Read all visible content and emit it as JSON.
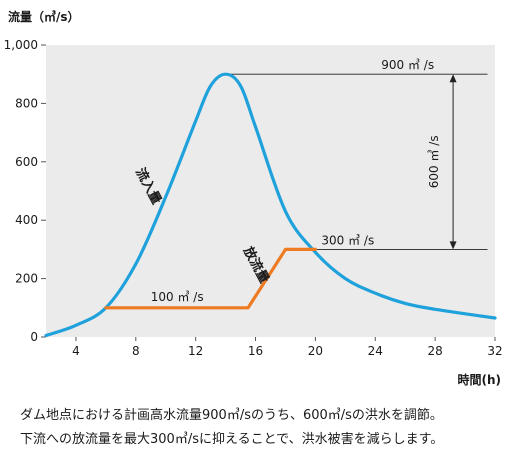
{
  "chart_data": {
    "type": "line",
    "ylabel": "流量（㎥/s）",
    "xlabel": "時間(h)",
    "xlim": [
      2,
      32
    ],
    "ylim": [
      0,
      1000
    ],
    "xticks": [
      4,
      8,
      12,
      16,
      20,
      24,
      28,
      32
    ],
    "xtick_labels": [
      "4",
      "8",
      "12",
      "16",
      "20",
      "24",
      "28",
      "32"
    ],
    "yticks": [
      0,
      200,
      400,
      600,
      800,
      1000
    ],
    "ytick_labels": [
      "0",
      "200",
      "400",
      "600",
      "800",
      "1,000"
    ],
    "grid": false,
    "series": [
      {
        "name": "流入量",
        "color": "#1fa1dc",
        "x": [
          2,
          4,
          6,
          8,
          10,
          12,
          13,
          14,
          15,
          16,
          18,
          20,
          22,
          24,
          26,
          28,
          32
        ],
        "y": [
          5,
          40,
          100,
          250,
          480,
          740,
          860,
          900,
          860,
          720,
          430,
          290,
          200,
          150,
          115,
          95,
          65
        ]
      },
      {
        "name": "放流量",
        "color": "#ee7b22",
        "x": [
          6,
          15.5,
          18,
          20
        ],
        "y": [
          100,
          100,
          300,
          300
        ]
      }
    ],
    "annotations": {
      "peak_label": "900 ㎥ /s",
      "regulated_label": "600 ㎥ /s",
      "max_outflow_label": "300 ㎥ /s",
      "base_outflow_label": "100 ㎥ /s"
    }
  },
  "caption": {
    "line1": "ダム地点における計画高水流量900㎥/sのうち、600㎥/sの洪水を調節。",
    "line2": "下流への放流量を最大300㎥/sに抑えることで、洪水被害を減らします。"
  },
  "colors": {
    "background": "#ffffff",
    "plot_area": "#ebebeb",
    "inflow": "#1fa1dc",
    "outflow": "#ee7b22",
    "text": "#1a1a1a"
  }
}
